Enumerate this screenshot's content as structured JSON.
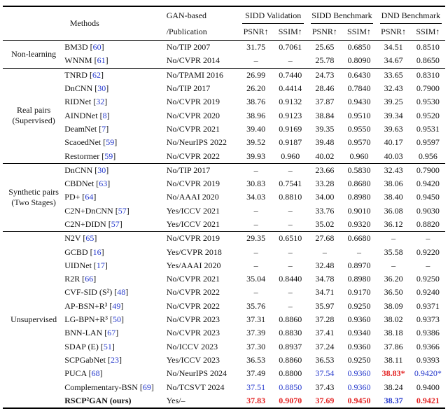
{
  "colors": {
    "citation_blue": "#2438cc",
    "best_red": "#e32222",
    "second_blue": "#2438cc"
  },
  "table": {
    "header": {
      "methods": "Methods",
      "gan_line1": "GAN-based",
      "gan_line2": "/Publication",
      "groups": [
        "SIDD Validation",
        "SIDD Benchmark",
        "DND Benchmark"
      ],
      "metrics": [
        "PSNR↑",
        "SSIM↑"
      ]
    },
    "sections": [
      {
        "label_lines": [
          "Non-learning"
        ],
        "rows": [
          {
            "method": "BM3D",
            "cite": "60",
            "pub": "No/TIP 2007",
            "vals": [
              {
                "v": "31.75"
              },
              {
                "v": "0.7061"
              },
              {
                "v": "25.65"
              },
              {
                "v": "0.6850"
              },
              {
                "v": "34.51"
              },
              {
                "v": "0.8510"
              }
            ]
          },
          {
            "method": "WNNM",
            "cite": "61",
            "pub": "No/CVPR 2014",
            "vals": [
              {
                "v": "–"
              },
              {
                "v": "–"
              },
              {
                "v": "25.78"
              },
              {
                "v": "0.8090"
              },
              {
                "v": "34.67"
              },
              {
                "v": "0.8650"
              }
            ]
          }
        ]
      },
      {
        "label_lines": [
          "Real pairs",
          "(Supervised)"
        ],
        "rows": [
          {
            "method": "TNRD",
            "cite": "62",
            "pub": "No/TPAMI 2016",
            "vals": [
              {
                "v": "26.99"
              },
              {
                "v": "0.7440"
              },
              {
                "v": "24.73"
              },
              {
                "v": "0.6430"
              },
              {
                "v": "33.65"
              },
              {
                "v": "0.8310"
              }
            ]
          },
          {
            "method": "DnCNN",
            "cite": "30",
            "pub": "No/TIP 2017",
            "vals": [
              {
                "v": "26.20"
              },
              {
                "v": "0.4414"
              },
              {
                "v": "28.46"
              },
              {
                "v": "0.7840"
              },
              {
                "v": "32.43"
              },
              {
                "v": "0.7900"
              }
            ]
          },
          {
            "method": "RIDNet",
            "cite": "32",
            "pub": "No/CVPR 2019",
            "vals": [
              {
                "v": "38.76"
              },
              {
                "v": "0.9132"
              },
              {
                "v": "37.87"
              },
              {
                "v": "0.9430"
              },
              {
                "v": "39.25"
              },
              {
                "v": "0.9530"
              }
            ]
          },
          {
            "method": "AINDNet",
            "cite": "8",
            "pub": "No/CVPR 2020",
            "vals": [
              {
                "v": "38.96"
              },
              {
                "v": "0.9123"
              },
              {
                "v": "38.84"
              },
              {
                "v": "0.9510"
              },
              {
                "v": "39.34"
              },
              {
                "v": "0.9520"
              }
            ]
          },
          {
            "method": "DeamNet",
            "cite": "7",
            "pub": "No/CVPR 2021",
            "vals": [
              {
                "v": "39.40"
              },
              {
                "v": "0.9169"
              },
              {
                "v": "39.35"
              },
              {
                "v": "0.9550"
              },
              {
                "v": "39.63"
              },
              {
                "v": "0.9531"
              }
            ]
          },
          {
            "method": "ScaoedNet",
            "cite": "59",
            "pub": "No/NeurIPS 2022",
            "vals": [
              {
                "v": "39.52"
              },
              {
                "v": "0.9187"
              },
              {
                "v": "39.48"
              },
              {
                "v": "0.9570"
              },
              {
                "v": "40.17"
              },
              {
                "v": "0.9597"
              }
            ]
          },
          {
            "method": "Restormer",
            "cite": "59",
            "pub": "No/CVPR 2022",
            "vals": [
              {
                "v": "39.93"
              },
              {
                "v": "0.960"
              },
              {
                "v": "40.02"
              },
              {
                "v": "0.960"
              },
              {
                "v": "40.03"
              },
              {
                "v": "0.956"
              }
            ]
          }
        ]
      },
      {
        "label_lines": [
          "Synthetic pairs",
          "(Two Stages)"
        ],
        "rows": [
          {
            "method": "DnCNN",
            "cite": "30",
            "pub": "No/TIP 2017",
            "vals": [
              {
                "v": "–"
              },
              {
                "v": "–"
              },
              {
                "v": "23.66"
              },
              {
                "v": "0.5830"
              },
              {
                "v": "32.43"
              },
              {
                "v": "0.7900"
              }
            ]
          },
          {
            "method": "CBDNet",
            "cite": "63",
            "pub": "No/CVPR 2019",
            "vals": [
              {
                "v": "30.83"
              },
              {
                "v": "0.7541"
              },
              {
                "v": "33.28"
              },
              {
                "v": "0.8680"
              },
              {
                "v": "38.06"
              },
              {
                "v": "0.9420"
              }
            ]
          },
          {
            "method": "PD+",
            "cite": "64",
            "pub": "No/AAAI 2020",
            "vals": [
              {
                "v": "34.03"
              },
              {
                "v": "0.8810"
              },
              {
                "v": "34.00"
              },
              {
                "v": "0.8980"
              },
              {
                "v": "38.40"
              },
              {
                "v": "0.9450"
              }
            ]
          },
          {
            "method": "C2N+DnCNN",
            "cite": "57",
            "pub": "Yes/ICCV 2021",
            "vals": [
              {
                "v": "–"
              },
              {
                "v": "–"
              },
              {
                "v": "33.76"
              },
              {
                "v": "0.9010"
              },
              {
                "v": "36.08"
              },
              {
                "v": "0.9030"
              }
            ]
          },
          {
            "method": "C2N+DIDN",
            "cite": "57",
            "pub": "Yes/ICCV 2021",
            "vals": [
              {
                "v": "–"
              },
              {
                "v": "–"
              },
              {
                "v": "35.02"
              },
              {
                "v": "0.9320"
              },
              {
                "v": "36.12"
              },
              {
                "v": "0.8820"
              }
            ]
          }
        ]
      },
      {
        "label_lines": [
          "Unsupervised"
        ],
        "rows": [
          {
            "method": "N2V",
            "cite": "65",
            "pub": "No/CVPR 2019",
            "vals": [
              {
                "v": "29.35"
              },
              {
                "v": "0.6510"
              },
              {
                "v": "27.68"
              },
              {
                "v": "0.6680"
              },
              {
                "v": "–"
              },
              {
                "v": "–"
              }
            ]
          },
          {
            "method": "GCBD",
            "cite": "16",
            "pub": "Yes/CVPR 2018",
            "vals": [
              {
                "v": "–"
              },
              {
                "v": "–"
              },
              {
                "v": "–"
              },
              {
                "v": "–"
              },
              {
                "v": "35.58"
              },
              {
                "v": "0.9220"
              }
            ]
          },
          {
            "method": "UIDNet",
            "cite": "17",
            "pub": "Yes/AAAI 2020",
            "vals": [
              {
                "v": "–"
              },
              {
                "v": "–"
              },
              {
                "v": "32.48"
              },
              {
                "v": "0.8970"
              },
              {
                "v": "–"
              },
              {
                "v": "–"
              }
            ]
          },
          {
            "method": "R2R",
            "cite": "66",
            "pub": "No/CVPR 2021",
            "vals": [
              {
                "v": "35.04"
              },
              {
                "v": "0.8440"
              },
              {
                "v": "34.78"
              },
              {
                "v": "0.8980"
              },
              {
                "v": "36.20"
              },
              {
                "v": "0.9250"
              }
            ]
          },
          {
            "method": "CVF-SID (S²)",
            "cite": "48",
            "pub": "No/CVPR 2022",
            "vals": [
              {
                "v": "–"
              },
              {
                "v": "–"
              },
              {
                "v": "34.71"
              },
              {
                "v": "0.9170"
              },
              {
                "v": "36.50"
              },
              {
                "v": "0.9240"
              }
            ]
          },
          {
            "method": "AP-BSN+R³",
            "cite": "49",
            "pub": "No/CVPR 2022",
            "vals": [
              {
                "v": "35.76"
              },
              {
                "v": "–"
              },
              {
                "v": "35.97"
              },
              {
                "v": "0.9250"
              },
              {
                "v": "38.09"
              },
              {
                "v": "0.9371"
              }
            ]
          },
          {
            "method": "LG-BPN+R³",
            "cite": "50",
            "pub": "No/CVPR 2023",
            "vals": [
              {
                "v": "37.31"
              },
              {
                "v": "0.8860"
              },
              {
                "v": "37.28"
              },
              {
                "v": "0.9360"
              },
              {
                "v": "38.02"
              },
              {
                "v": "0.9373"
              }
            ]
          },
          {
            "method": "BNN-LAN",
            "cite": "67",
            "pub": "No/CVPR 2023",
            "vals": [
              {
                "v": "37.39"
              },
              {
                "v": "0.8830"
              },
              {
                "v": "37.41"
              },
              {
                "v": "0.9340"
              },
              {
                "v": "38.18"
              },
              {
                "v": "0.9386"
              }
            ]
          },
          {
            "method": "SDAP (E)",
            "cite": "51",
            "pub": "No/ICCV 2023",
            "vals": [
              {
                "v": "37.30"
              },
              {
                "v": "0.8937"
              },
              {
                "v": "37.24"
              },
              {
                "v": "0.9360"
              },
              {
                "v": "37.86"
              },
              {
                "v": "0.9366"
              }
            ]
          },
          {
            "method": "SCPGabNet",
            "cite": "23",
            "pub": "Yes/ICCV 2023",
            "vals": [
              {
                "v": "36.53"
              },
              {
                "v": "0.8860"
              },
              {
                "v": "36.53"
              },
              {
                "v": "0.9250"
              },
              {
                "v": "38.11"
              },
              {
                "v": "0.9393"
              }
            ]
          },
          {
            "method": "PUCA",
            "cite": "68",
            "pub": "No/NeurIPS 2024",
            "vals": [
              {
                "v": "37.49"
              },
              {
                "v": "0.8800"
              },
              {
                "v": "37.54",
                "color": "blue"
              },
              {
                "v": "0.9360",
                "color": "blue"
              },
              {
                "v": "38.83*",
                "color": "red",
                "bold": true
              },
              {
                "v": "0.9420*",
                "color": "blue"
              }
            ]
          },
          {
            "method": "Complementary-BSN",
            "cite": "69",
            "pub": "No/TCSVT 2024",
            "vals": [
              {
                "v": "37.51",
                "color": "blue"
              },
              {
                "v": "0.8850",
                "color": "blue"
              },
              {
                "v": "37.43"
              },
              {
                "v": "0.9360",
                "color": "blue"
              },
              {
                "v": "38.24"
              },
              {
                "v": "0.9400"
              }
            ]
          },
          {
            "method": "RSCP²GAN (ours)",
            "cite": null,
            "bold": true,
            "pub": "Yes/–",
            "vals": [
              {
                "v": "37.83",
                "color": "red",
                "bold": true
              },
              {
                "v": "0.9070",
                "color": "red",
                "bold": true
              },
              {
                "v": "37.69",
                "color": "red",
                "bold": true
              },
              {
                "v": "0.9450",
                "color": "red",
                "bold": true
              },
              {
                "v": "38.37",
                "color": "blue",
                "bold": true
              },
              {
                "v": "0.9421",
                "color": "red",
                "bold": true
              }
            ]
          }
        ]
      }
    ]
  }
}
